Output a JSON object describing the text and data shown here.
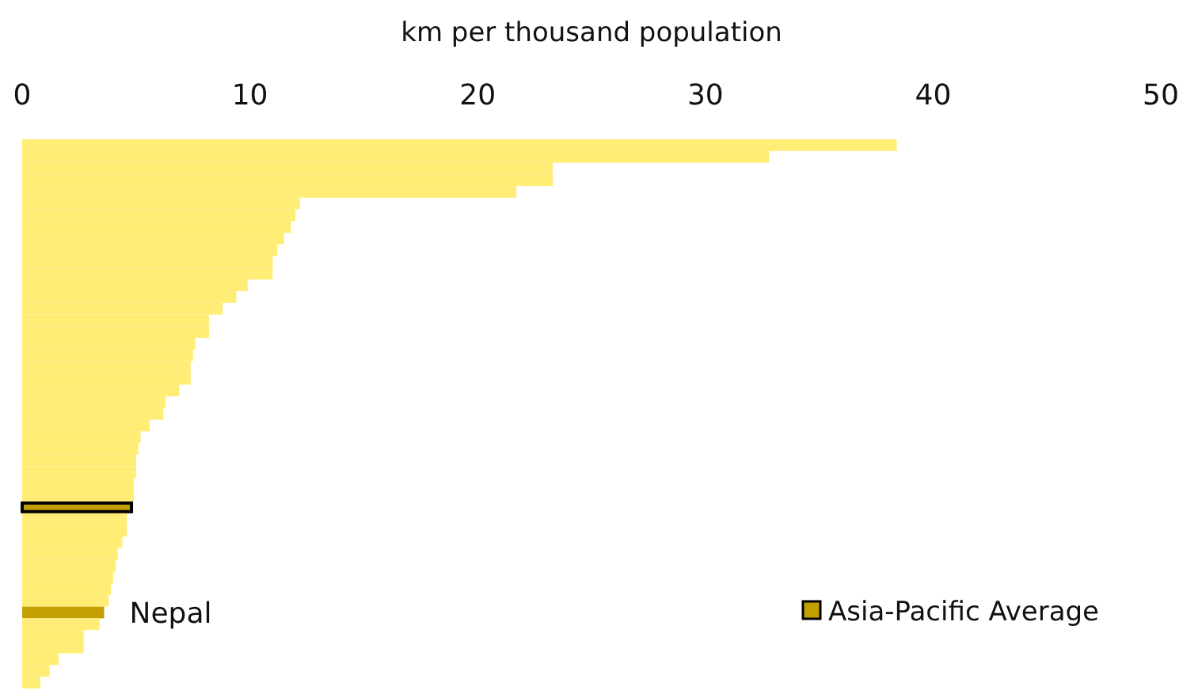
{
  "chart_data": {
    "type": "bar",
    "orientation": "horizontal",
    "xlabel": "km per thousand population",
    "categories": [
      null,
      null,
      null,
      null,
      null,
      null,
      null,
      null,
      null,
      null,
      null,
      null,
      null,
      null,
      null,
      null,
      null,
      null,
      null,
      null,
      null,
      null,
      null,
      null,
      null,
      null,
      null,
      null,
      null,
      null,
      null,
      null,
      null,
      null,
      null,
      null,
      null,
      null,
      null,
      null,
      "Nepal",
      null,
      null,
      null,
      null,
      null,
      null
    ],
    "values": [
      38.4,
      32.8,
      23.3,
      23.3,
      21.7,
      12.2,
      12.0,
      11.8,
      11.5,
      11.2,
      11.0,
      11.0,
      9.9,
      9.4,
      8.8,
      8.2,
      8.2,
      7.6,
      7.5,
      7.4,
      7.4,
      6.9,
      6.3,
      6.2,
      5.6,
      5.2,
      5.1,
      5.0,
      5.0,
      4.9,
      4.9,
      4.8,
      4.6,
      4.6,
      4.4,
      4.2,
      4.1,
      4.0,
      3.9,
      3.8,
      3.6,
      3.4,
      2.7,
      2.7,
      1.6,
      1.2,
      0.8
    ],
    "colors": [
      "#ffed75",
      "#ffed75",
      "#ffed75",
      "#ffed75",
      "#ffed75",
      "#ffed75",
      "#ffed75",
      "#ffed75",
      "#ffed75",
      "#ffed75",
      "#ffed75",
      "#ffed75",
      "#ffed75",
      "#ffed75",
      "#ffed75",
      "#ffed75",
      "#ffed75",
      "#ffed75",
      "#ffed75",
      "#ffed75",
      "#ffed75",
      "#ffed75",
      "#ffed75",
      "#ffed75",
      "#ffed75",
      "#ffed75",
      "#ffed75",
      "#ffed75",
      "#ffed75",
      "#ffed75",
      "#ffed75",
      "#c49f00",
      "#ffed75",
      "#ffed75",
      "#ffed75",
      "#ffed75",
      "#ffed75",
      "#ffed75",
      "#ffed75",
      "#ffed75",
      "#c49f00",
      "#ffed75",
      "#ffed75",
      "#ffed75",
      "#ffed75",
      "#ffed75",
      "#ffed75"
    ],
    "annotations": [
      "Asia-Pacific Average"
    ],
    "xlim": [
      0,
      50
    ],
    "xticks": [
      0,
      10,
      20,
      30,
      40,
      50
    ],
    "tick_labels": "x"
  }
}
